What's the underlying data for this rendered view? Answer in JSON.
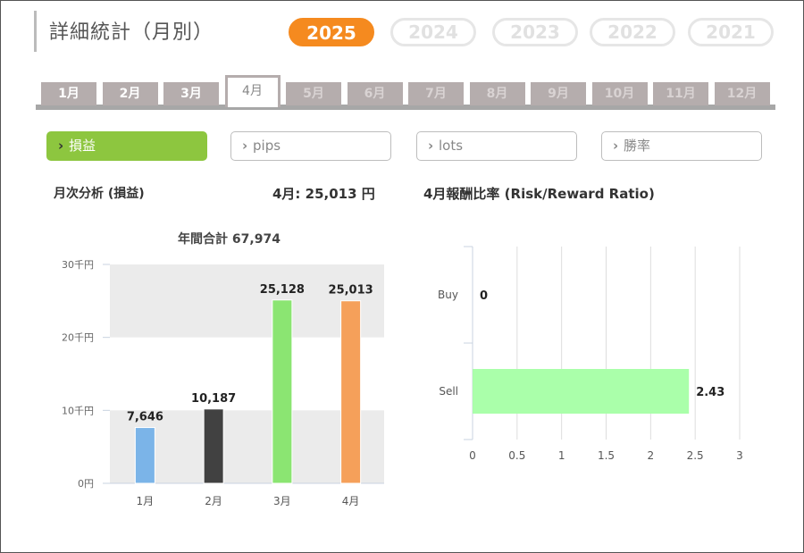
{
  "header": {
    "title": "詳細統計（月別）"
  },
  "years": [
    {
      "label": "2025",
      "active": true
    },
    {
      "label": "2024",
      "active": false
    },
    {
      "label": "2023",
      "active": false
    },
    {
      "label": "2022",
      "active": false
    },
    {
      "label": "2021",
      "active": false
    }
  ],
  "months": [
    {
      "label": "1月",
      "state": "normal"
    },
    {
      "label": "2月",
      "state": "normal"
    },
    {
      "label": "3月",
      "state": "normal"
    },
    {
      "label": "4月",
      "state": "active"
    },
    {
      "label": "5月",
      "state": "disabled"
    },
    {
      "label": "6月",
      "state": "disabled"
    },
    {
      "label": "7月",
      "state": "disabled"
    },
    {
      "label": "8月",
      "state": "disabled"
    },
    {
      "label": "9月",
      "state": "disabled"
    },
    {
      "label": "10月",
      "state": "disabled"
    },
    {
      "label": "11月",
      "state": "disabled"
    },
    {
      "label": "12月",
      "state": "disabled"
    }
  ],
  "metrics": [
    {
      "label": "損益",
      "active": true,
      "icon": "chevron-right-icon"
    },
    {
      "label": "pips",
      "active": false,
      "icon": "chevron-right-icon"
    },
    {
      "label": "lots",
      "active": false,
      "icon": "chevron-right-icon"
    },
    {
      "label": "勝率",
      "active": false,
      "icon": "chevron-right-icon"
    }
  ],
  "summary": {
    "monthly_label": "月次分析 (損益)",
    "month_value_label": "4月:  25,013 円",
    "ratio_label": "4月報酬比率 (Risk/Reward Ratio)"
  },
  "colors": {
    "accent": "#f58a1f",
    "metric_active": "#8dc63f",
    "bar_jan": "#7bb4e8",
    "bar_feb": "#414141",
    "bar_mar": "#8be572",
    "bar_apr": "#f5a05a",
    "bar_sell": "#aaffaa"
  },
  "chart_data": [
    {
      "type": "bar",
      "title": "年間合計 67,974",
      "categories": [
        "1月",
        "2月",
        "3月",
        "4月"
      ],
      "values": [
        7646,
        10187,
        25128,
        25013
      ],
      "value_labels": [
        "7,646",
        "10,187",
        "25,128",
        "25,013"
      ],
      "ylim": [
        0,
        30000
      ],
      "yticks": [
        0,
        10000,
        20000,
        30000
      ],
      "ytick_labels": [
        "0円",
        "10千円",
        "20千円",
        "30千円"
      ],
      "grid": true
    },
    {
      "type": "bar",
      "orientation": "horizontal",
      "categories": [
        "Buy",
        "Sell"
      ],
      "values": [
        0,
        2.43
      ],
      "value_labels": [
        "0",
        "2.43"
      ],
      "xlim": [
        0,
        3
      ],
      "xticks": [
        0,
        0.5,
        1,
        1.5,
        2,
        2.5,
        3
      ],
      "xtick_labels": [
        "0",
        "0.5",
        "1",
        "1.5",
        "2",
        "2.5",
        "3"
      ],
      "grid": true
    }
  ]
}
